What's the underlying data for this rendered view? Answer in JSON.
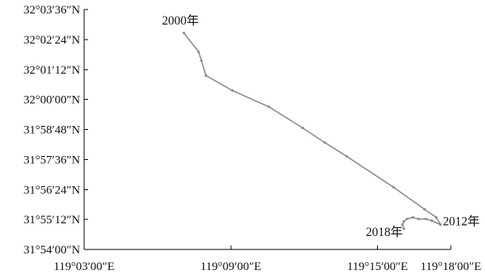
{
  "chart_data": {
    "type": "line",
    "title": "",
    "xlabel": "",
    "ylabel": "",
    "grid": false,
    "x_axis": {
      "unit": "degrees east longitude",
      "range": [
        119.05,
        119.3
      ],
      "ticks": [
        {
          "value": 119.05,
          "label": "119°03′00″E"
        },
        {
          "value": 119.15,
          "label": "119°09′00″E"
        },
        {
          "value": 119.25,
          "label": "119°15′00″E"
        },
        {
          "value": 119.3,
          "label": "119°18′00″E"
        }
      ]
    },
    "y_axis": {
      "unit": "degrees north latitude",
      "range": [
        31.9,
        32.06
      ],
      "ticks": [
        {
          "value": 31.9,
          "label": "31°54′00″N"
        },
        {
          "value": 31.92,
          "label": "31°55′12″N"
        },
        {
          "value": 31.94,
          "label": "31°56′24″N"
        },
        {
          "value": 31.96,
          "label": "31°57′36″N"
        },
        {
          "value": 31.98,
          "label": "31°58′48″N"
        },
        {
          "value": 32.0,
          "label": "32°00′00″N"
        },
        {
          "value": 32.02,
          "label": "32°01′12″N"
        },
        {
          "value": 32.04,
          "label": "32°02′24″N"
        },
        {
          "value": 32.06,
          "label": "32°03′36″N"
        }
      ]
    },
    "series": [
      {
        "color": "#8c8c8c",
        "points": [
          {
            "x": 119.118,
            "y": 32.0443
          },
          {
            "x": 119.128,
            "y": 32.0318
          },
          {
            "x": 119.13,
            "y": 32.0259
          },
          {
            "x": 119.133,
            "y": 32.016
          },
          {
            "x": 119.151,
            "y": 32.006
          },
          {
            "x": 119.176,
            "y": 31.9951
          },
          {
            "x": 119.199,
            "y": 31.981
          },
          {
            "x": 119.214,
            "y": 31.9713
          },
          {
            "x": 119.229,
            "y": 31.9621
          },
          {
            "x": 119.261,
            "y": 31.9414
          },
          {
            "x": 119.282,
            "y": 31.9268
          },
          {
            "x": 119.29,
            "y": 31.9214
          },
          {
            "x": 119.293,
            "y": 31.9165
          },
          {
            "x": 119.287,
            "y": 31.9192
          },
          {
            "x": 119.283,
            "y": 31.9203
          },
          {
            "x": 119.278,
            "y": 31.9203
          },
          {
            "x": 119.274,
            "y": 31.9214
          },
          {
            "x": 119.27,
            "y": 31.9203
          },
          {
            "x": 119.268,
            "y": 31.9187
          },
          {
            "x": 119.267,
            "y": 31.9165
          },
          {
            "x": 119.268,
            "y": 31.9138
          }
        ]
      }
    ],
    "annotations": [
      {
        "text": "2000年",
        "x": 119.103,
        "y": 32.05
      },
      {
        "text": "2012年",
        "x": 119.2945,
        "y": 31.916
      },
      {
        "text": "2018年",
        "x": 119.242,
        "y": 31.909
      }
    ]
  }
}
